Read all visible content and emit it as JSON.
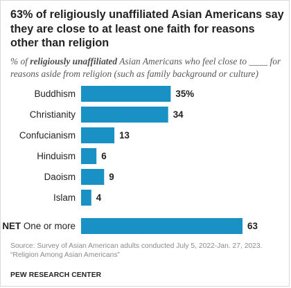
{
  "header": {
    "title": "63% of religiously unaffiliated Asian Americans say they are close to at least one faith for reasons other than religion",
    "subtitle_prefix": "% of ",
    "subtitle_emphasis": "religiously unaffiliated",
    "subtitle_suffix": " Asian Americans who feel close to ____ for reasons aside from religion (such as family background or culture)"
  },
  "chart_data": {
    "type": "bar",
    "orientation": "horizontal",
    "categories": [
      "Buddhism",
      "Christianity",
      "Confucianism",
      "Hinduism",
      "Daoism",
      "Islam",
      "One or more"
    ],
    "category_prefixes": [
      "",
      "",
      "",
      "",
      "",
      "",
      "NET"
    ],
    "values": [
      35,
      34,
      13,
      6,
      9,
      4,
      63
    ],
    "data_labels": [
      "35%",
      "34",
      "13",
      "6",
      "9",
      "4",
      "63"
    ],
    "bar_color": "#1a91c5",
    "xlim": [
      0,
      63
    ],
    "title": "",
    "xlabel": "",
    "ylabel": "",
    "grid": false,
    "legend": "none"
  },
  "footer": {
    "source": "Source: Survey of Asian American adults conducted July 5, 2022-Jan. 27, 2023. “Religion Among Asian Americans”",
    "brand": "PEW RESEARCH CENTER"
  }
}
